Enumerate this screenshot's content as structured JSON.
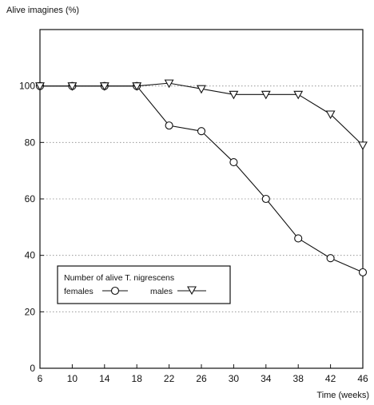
{
  "chart_data": {
    "type": "line",
    "ylabel": "Alive imagines (%)",
    "xlabel": "Time (weeks)",
    "categories": [
      "6",
      "10",
      "14",
      "18",
      "22",
      "26",
      "30",
      "34",
      "38",
      "42",
      "46"
    ],
    "y_ticks": [
      "0",
      "20",
      "40",
      "60",
      "80",
      "100"
    ],
    "ylim": [
      0,
      120
    ],
    "grid": "dotted horizontal lines",
    "legend": {
      "title": "Number of alive T. nigrescens",
      "position": "lower-left"
    },
    "series": [
      {
        "name": "females",
        "marker": "circle",
        "values": [
          100,
          100,
          100,
          100,
          86,
          84,
          73,
          60,
          46,
          39,
          34
        ]
      },
      {
        "name": "males",
        "marker": "triangle-down",
        "values": [
          100,
          100,
          100,
          100,
          101,
          99,
          97,
          97,
          97,
          90,
          79
        ]
      }
    ]
  }
}
